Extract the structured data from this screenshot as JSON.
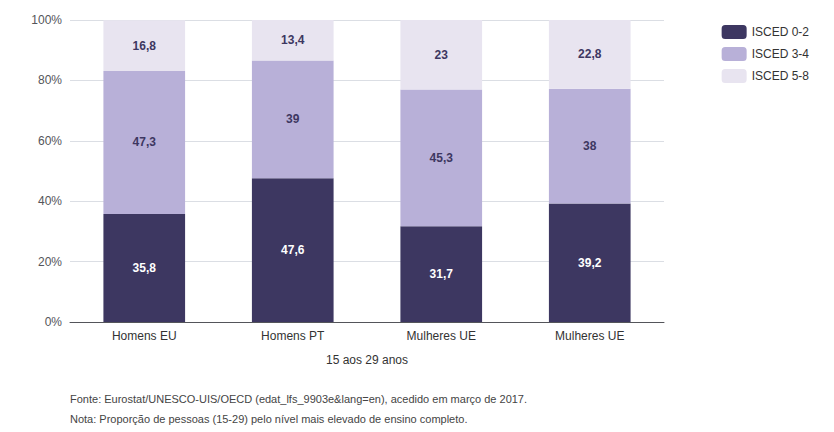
{
  "chart_data": {
    "type": "bar",
    "stacked": true,
    "categories": [
      "Homens EU",
      "Homens PT",
      "Mulheres UE",
      "Mulheres UE"
    ],
    "series": [
      {
        "name": "ISCED 0-2",
        "color": "#3d3761",
        "values": [
          35.8,
          47.6,
          31.7,
          39.2
        ],
        "value_labels": [
          "35,8",
          "47,6",
          "31,7",
          "39,2"
        ]
      },
      {
        "name": "ISCED 3-4",
        "color": "#b8b0d8",
        "values": [
          47.3,
          39.0,
          45.3,
          38.0
        ],
        "value_labels": [
          "47,3",
          "39",
          "45,3",
          "38"
        ]
      },
      {
        "name": "ISCED 5-8",
        "color": "#e8e4f0",
        "values": [
          16.8,
          13.4,
          23.0,
          22.8
        ],
        "value_labels": [
          "16,8",
          "13,4",
          "23",
          "22,8"
        ]
      }
    ],
    "data_labels": true,
    "xlabel": "15 aos 29 anos",
    "ylim": [
      0,
      100
    ],
    "yticks": [
      {
        "value": 0,
        "label": "0%"
      },
      {
        "value": 20,
        "label": "20%"
      },
      {
        "value": 40,
        "label": "40%"
      },
      {
        "value": 60,
        "label": "60%"
      },
      {
        "value": 80,
        "label": "80%"
      },
      {
        "value": 100,
        "label": "100%"
      }
    ],
    "grid": true,
    "legend": "right",
    "annotations": [
      "Fonte: Eurostat/UNESCO-UIS/OECD (edat_lfs_9903e&lang=en), acedido em março de 2017.",
      "Nota: Proporção de pessoas (15-29) pelo nível mais elevado de ensino completo."
    ]
  }
}
